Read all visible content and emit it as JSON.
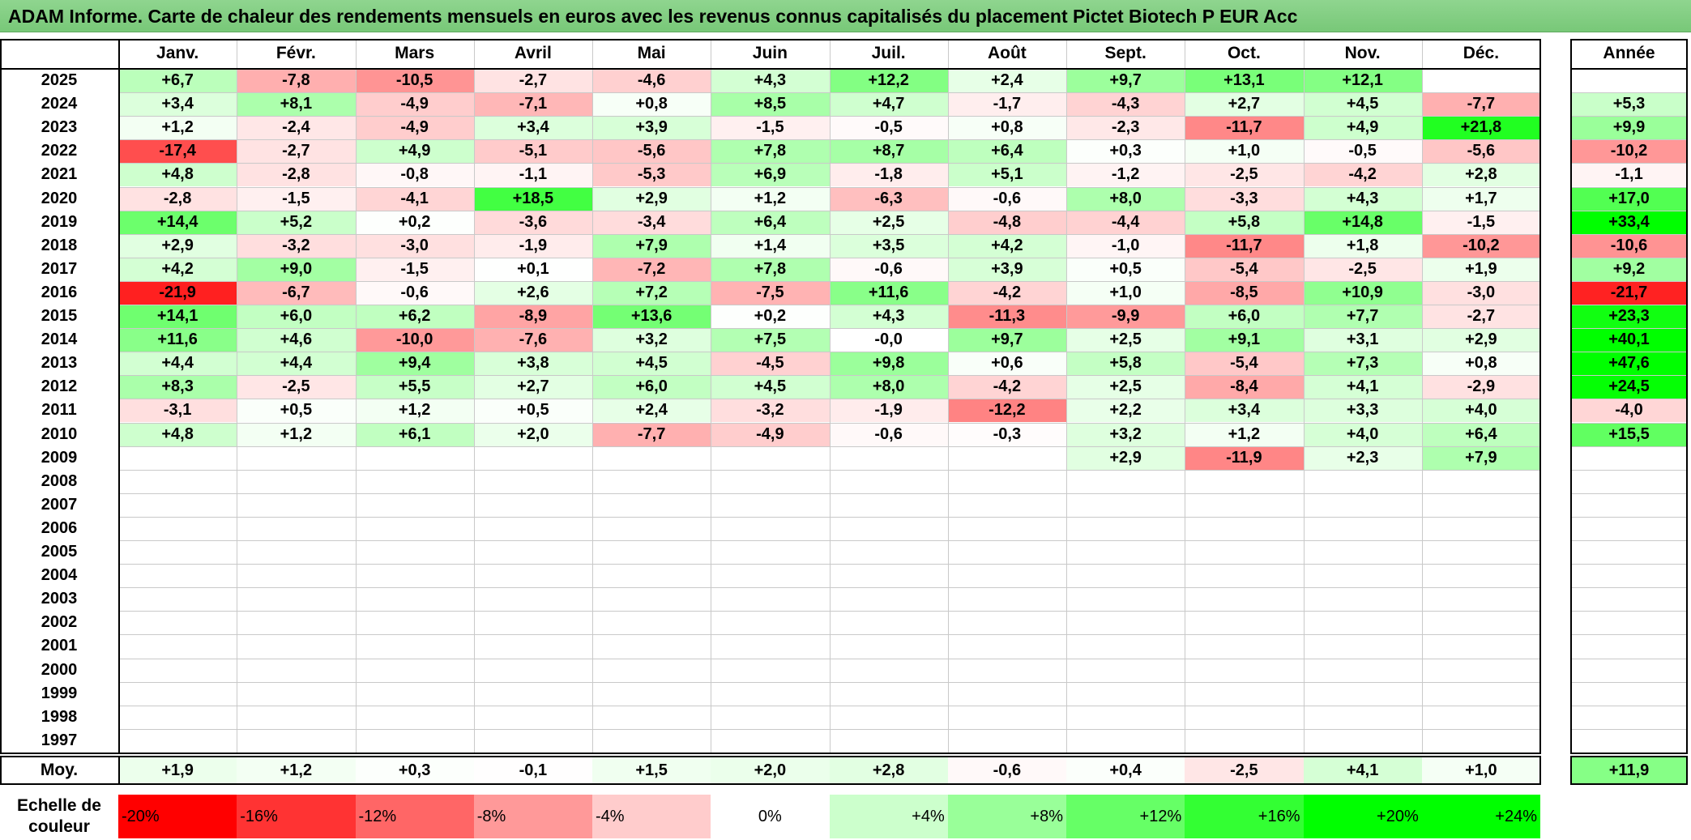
{
  "title": "ADAM Informe. Carte de chaleur des rendements mensuels en euros avec les revenus connus capitalisés du placement Pictet Biotech P EUR Acc",
  "chart_data": {
    "type": "heatmap",
    "months": [
      "Janv.",
      "Févr.",
      "Mars",
      "Avril",
      "Mai",
      "Juin",
      "Juil.",
      "Août",
      "Sept.",
      "Oct.",
      "Nov.",
      "Déc."
    ],
    "year_header": "Année",
    "rows": [
      {
        "year": "2025",
        "values": [
          "+6,7",
          "-7,8",
          "-10,5",
          "-2,7",
          "-4,6",
          "+4,3",
          "+12,2",
          "+2,4",
          "+9,7",
          "+13,1",
          "+12,1",
          ""
        ],
        "annual": ""
      },
      {
        "year": "2024",
        "values": [
          "+3,4",
          "+8,1",
          "-4,9",
          "-7,1",
          "+0,8",
          "+8,5",
          "+4,7",
          "-1,7",
          "-4,3",
          "+2,7",
          "+4,5",
          "-7,7"
        ],
        "annual": "+5,3"
      },
      {
        "year": "2023",
        "values": [
          "+1,2",
          "-2,4",
          "-4,9",
          "+3,4",
          "+3,9",
          "-1,5",
          "-0,5",
          "+0,8",
          "-2,3",
          "-11,7",
          "+4,9",
          "+21,8"
        ],
        "annual": "+9,9"
      },
      {
        "year": "2022",
        "values": [
          "-17,4",
          "-2,7",
          "+4,9",
          "-5,1",
          "-5,6",
          "+7,8",
          "+8,7",
          "+6,4",
          "+0,3",
          "+1,0",
          "-0,5",
          "-5,6"
        ],
        "annual": "-10,2"
      },
      {
        "year": "2021",
        "values": [
          "+4,8",
          "-2,8",
          "-0,8",
          "-1,1",
          "-5,3",
          "+6,9",
          "-1,8",
          "+5,1",
          "-1,2",
          "-2,5",
          "-4,2",
          "+2,8"
        ],
        "annual": "-1,1"
      },
      {
        "year": "2020",
        "values": [
          "-2,8",
          "-1,5",
          "-4,1",
          "+18,5",
          "+2,9",
          "+1,2",
          "-6,3",
          "-0,6",
          "+8,0",
          "-3,3",
          "+4,3",
          "+1,7"
        ],
        "annual": "+17,0"
      },
      {
        "year": "2019",
        "values": [
          "+14,4",
          "+5,2",
          "+0,2",
          "-3,6",
          "-3,4",
          "+6,4",
          "+2,5",
          "-4,8",
          "-4,4",
          "+5,8",
          "+14,8",
          "-1,5"
        ],
        "annual": "+33,4"
      },
      {
        "year": "2018",
        "values": [
          "+2,9",
          "-3,2",
          "-3,0",
          "-1,9",
          "+7,9",
          "+1,4",
          "+3,5",
          "+4,2",
          "-1,0",
          "-11,7",
          "+1,8",
          "-10,2"
        ],
        "annual": "-10,6"
      },
      {
        "year": "2017",
        "values": [
          "+4,2",
          "+9,0",
          "-1,5",
          "+0,1",
          "-7,2",
          "+7,8",
          "-0,6",
          "+3,9",
          "+0,5",
          "-5,4",
          "-2,5",
          "+1,9"
        ],
        "annual": "+9,2"
      },
      {
        "year": "2016",
        "values": [
          "-21,9",
          "-6,7",
          "-0,6",
          "+2,6",
          "+7,2",
          "-7,5",
          "+11,6",
          "-4,2",
          "+1,0",
          "-8,5",
          "+10,9",
          "-3,0"
        ],
        "annual": "-21,7"
      },
      {
        "year": "2015",
        "values": [
          "+14,1",
          "+6,0",
          "+6,2",
          "-8,9",
          "+13,6",
          "+0,2",
          "+4,3",
          "-11,3",
          "-9,9",
          "+6,0",
          "+7,7",
          "-2,7"
        ],
        "annual": "+23,3"
      },
      {
        "year": "2014",
        "values": [
          "+11,6",
          "+4,6",
          "-10,0",
          "-7,6",
          "+3,2",
          "+7,5",
          "-0,0",
          "+9,7",
          "+2,5",
          "+9,1",
          "+3,1",
          "+2,9"
        ],
        "annual": "+40,1"
      },
      {
        "year": "2013",
        "values": [
          "+4,4",
          "+4,4",
          "+9,4",
          "+3,8",
          "+4,5",
          "-4,5",
          "+9,8",
          "+0,6",
          "+5,8",
          "-5,4",
          "+7,3",
          "+0,8"
        ],
        "annual": "+47,6"
      },
      {
        "year": "2012",
        "values": [
          "+8,3",
          "-2,5",
          "+5,5",
          "+2,7",
          "+6,0",
          "+4,5",
          "+8,0",
          "-4,2",
          "+2,5",
          "-8,4",
          "+4,1",
          "-2,9"
        ],
        "annual": "+24,5"
      },
      {
        "year": "2011",
        "values": [
          "-3,1",
          "+0,5",
          "+1,2",
          "+0,5",
          "+2,4",
          "-3,2",
          "-1,9",
          "-12,2",
          "+2,2",
          "+3,4",
          "+3,3",
          "+4,0"
        ],
        "annual": "-4,0"
      },
      {
        "year": "2010",
        "values": [
          "+4,8",
          "+1,2",
          "+6,1",
          "+2,0",
          "-7,7",
          "-4,9",
          "-0,6",
          "-0,3",
          "+3,2",
          "+1,2",
          "+4,0",
          "+6,4"
        ],
        "annual": "+15,5"
      },
      {
        "year": "2009",
        "values": [
          "",
          "",
          "",
          "",
          "",
          "",
          "",
          "",
          "+2,9",
          "-11,9",
          "+2,3",
          "+7,9"
        ],
        "annual": ""
      },
      {
        "year": "2008",
        "values": [
          "",
          "",
          "",
          "",
          "",
          "",
          "",
          "",
          "",
          "",
          "",
          ""
        ],
        "annual": ""
      },
      {
        "year": "2007",
        "values": [
          "",
          "",
          "",
          "",
          "",
          "",
          "",
          "",
          "",
          "",
          "",
          ""
        ],
        "annual": ""
      },
      {
        "year": "2006",
        "values": [
          "",
          "",
          "",
          "",
          "",
          "",
          "",
          "",
          "",
          "",
          "",
          ""
        ],
        "annual": ""
      },
      {
        "year": "2005",
        "values": [
          "",
          "",
          "",
          "",
          "",
          "",
          "",
          "",
          "",
          "",
          "",
          ""
        ],
        "annual": ""
      },
      {
        "year": "2004",
        "values": [
          "",
          "",
          "",
          "",
          "",
          "",
          "",
          "",
          "",
          "",
          "",
          ""
        ],
        "annual": ""
      },
      {
        "year": "2003",
        "values": [
          "",
          "",
          "",
          "",
          "",
          "",
          "",
          "",
          "",
          "",
          "",
          ""
        ],
        "annual": ""
      },
      {
        "year": "2002",
        "values": [
          "",
          "",
          "",
          "",
          "",
          "",
          "",
          "",
          "",
          "",
          "",
          ""
        ],
        "annual": ""
      },
      {
        "year": "2001",
        "values": [
          "",
          "",
          "",
          "",
          "",
          "",
          "",
          "",
          "",
          "",
          "",
          ""
        ],
        "annual": ""
      },
      {
        "year": "2000",
        "values": [
          "",
          "",
          "",
          "",
          "",
          "",
          "",
          "",
          "",
          "",
          "",
          ""
        ],
        "annual": ""
      },
      {
        "year": "1999",
        "values": [
          "",
          "",
          "",
          "",
          "",
          "",
          "",
          "",
          "",
          "",
          "",
          ""
        ],
        "annual": ""
      },
      {
        "year": "1998",
        "values": [
          "",
          "",
          "",
          "",
          "",
          "",
          "",
          "",
          "",
          "",
          "",
          ""
        ],
        "annual": ""
      },
      {
        "year": "1997",
        "values": [
          "",
          "",
          "",
          "",
          "",
          "",
          "",
          "",
          "",
          "",
          "",
          ""
        ],
        "annual": ""
      }
    ],
    "average": {
      "label": "Moy.",
      "values": [
        "+1,9",
        "+1,2",
        "+0,3",
        "-0,1",
        "+1,5",
        "+2,0",
        "+2,8",
        "-0,6",
        "+0,4",
        "-2,5",
        "+4,1",
        "+1,0"
      ],
      "annual": "+11,9"
    },
    "scale": {
      "label": "Echelle de couleur",
      "steps": [
        "-20%",
        "-16%",
        "-12%",
        "-8%",
        "-4%",
        "0%",
        "+4%",
        "+8%",
        "+12%",
        "+16%",
        "+20%",
        "+24%"
      ],
      "colors": [
        "#ff0000",
        "#ff3333",
        "#ff6666",
        "#ff9999",
        "#ffcccc",
        "#ffffff",
        "#ccffcc",
        "#99ff99",
        "#66ff66",
        "#33ff33",
        "#00ff00",
        "#00ff00"
      ]
    },
    "color_rule": {
      "negative": "#ff0000",
      "neutral": "#ffffff",
      "positive": "#00ff00",
      "saturation_at": 25
    }
  }
}
